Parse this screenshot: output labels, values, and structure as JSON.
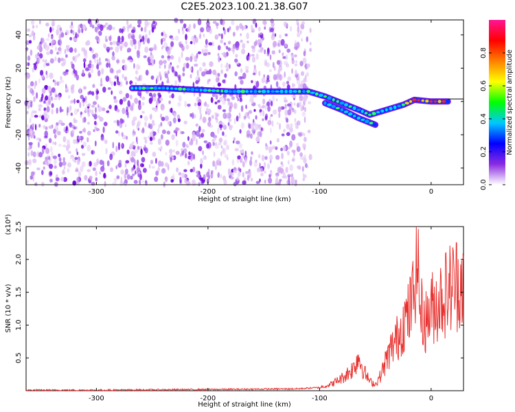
{
  "title": "C2E5.2023.100.21.38.G07",
  "chart_data": [
    {
      "type": "heatmap",
      "title": "",
      "xlabel": "Height of straight line (km)",
      "ylabel": "Frequency (Hz)",
      "xlim": [
        -363,
        29
      ],
      "ylim": [
        -50,
        49
      ],
      "x_ticks": [
        -300,
        -200,
        -100,
        0
      ],
      "x_tick_labels": [
        "-300",
        "-200",
        "-100",
        "0"
      ],
      "y_ticks": [
        -40,
        -20,
        0,
        20,
        40
      ],
      "y_tick_labels": [
        "-40",
        "-20",
        "0",
        "20",
        "40"
      ],
      "colorbar": {
        "label": "Normalized spectral amplitude",
        "range": [
          0,
          1
        ],
        "ticks": [
          0.0,
          0.2,
          0.4,
          0.6,
          0.8
        ],
        "tick_labels": [
          "0.0",
          "0.2",
          "0.4",
          "0.6",
          "0.8"
        ],
        "colormap": [
          "#ffffff",
          "#8a2be2",
          "#0000ff",
          "#00c8ff",
          "#00ff00",
          "#ffff00",
          "#ff8000",
          "#ff0000",
          "#ff1493"
        ]
      },
      "noise_region_x": [
        -363,
        -108
      ],
      "signal_track": [
        {
          "x": -268,
          "y": 8
        },
        {
          "x": -240,
          "y": 8
        },
        {
          "x": -210,
          "y": 7
        },
        {
          "x": -180,
          "y": 6
        },
        {
          "x": -150,
          "y": 6
        },
        {
          "x": -130,
          "y": 6
        },
        {
          "x": -110,
          "y": 6
        },
        {
          "x": -95,
          "y": 3
        },
        {
          "x": -80,
          "y": -1
        },
        {
          "x": -65,
          "y": -5
        },
        {
          "x": -55,
          "y": -8
        },
        {
          "x": -40,
          "y": -5
        },
        {
          "x": -25,
          "y": -2
        },
        {
          "x": -15,
          "y": 1
        },
        {
          "x": 0,
          "y": 0
        },
        {
          "x": 15,
          "y": 0
        }
      ],
      "signal_branch": [
        {
          "x": -95,
          "y": -1
        },
        {
          "x": -80,
          "y": -5
        },
        {
          "x": -65,
          "y": -10
        },
        {
          "x": -50,
          "y": -14
        }
      ],
      "grid": false
    },
    {
      "type": "line",
      "title": "",
      "xlabel": "Height of straight line (km)",
      "ylabel": "SNR (10 * v/v)",
      "y_scale_note": "(x10⁴)",
      "xlim": [
        -363,
        29
      ],
      "ylim": [
        0,
        2.5
      ],
      "x_ticks": [
        -300,
        -200,
        -100,
        0
      ],
      "x_tick_labels": [
        "-300",
        "-200",
        "-100",
        "0"
      ],
      "y_ticks": [
        0.5,
        1.0,
        1.5,
        2.0,
        2.5
      ],
      "y_tick_labels": [
        "0.5",
        "1.0",
        "1.5",
        "2.0",
        "2.5"
      ],
      "series": [
        {
          "color": "#e8322f",
          "x": [
            -363,
            -300,
            -200,
            -120,
            -100,
            -90,
            -80,
            -70,
            -65,
            -60,
            -55,
            -50,
            -45,
            -40,
            -35,
            -30,
            -25,
            -20,
            -15,
            -13,
            -10,
            -5,
            0,
            5,
            10,
            15,
            20,
            25,
            29
          ],
          "y": [
            0.01,
            0.01,
            0.02,
            0.03,
            0.05,
            0.1,
            0.2,
            0.35,
            0.55,
            0.3,
            0.15,
            0.1,
            0.25,
            0.5,
            0.7,
            0.85,
            1.1,
            1.2,
            1.6,
            2.5,
            1.3,
            1.1,
            1.3,
            1.4,
            1.5,
            1.6,
            1.7,
            1.75,
            1.8
          ]
        }
      ],
      "grid": false
    }
  ]
}
